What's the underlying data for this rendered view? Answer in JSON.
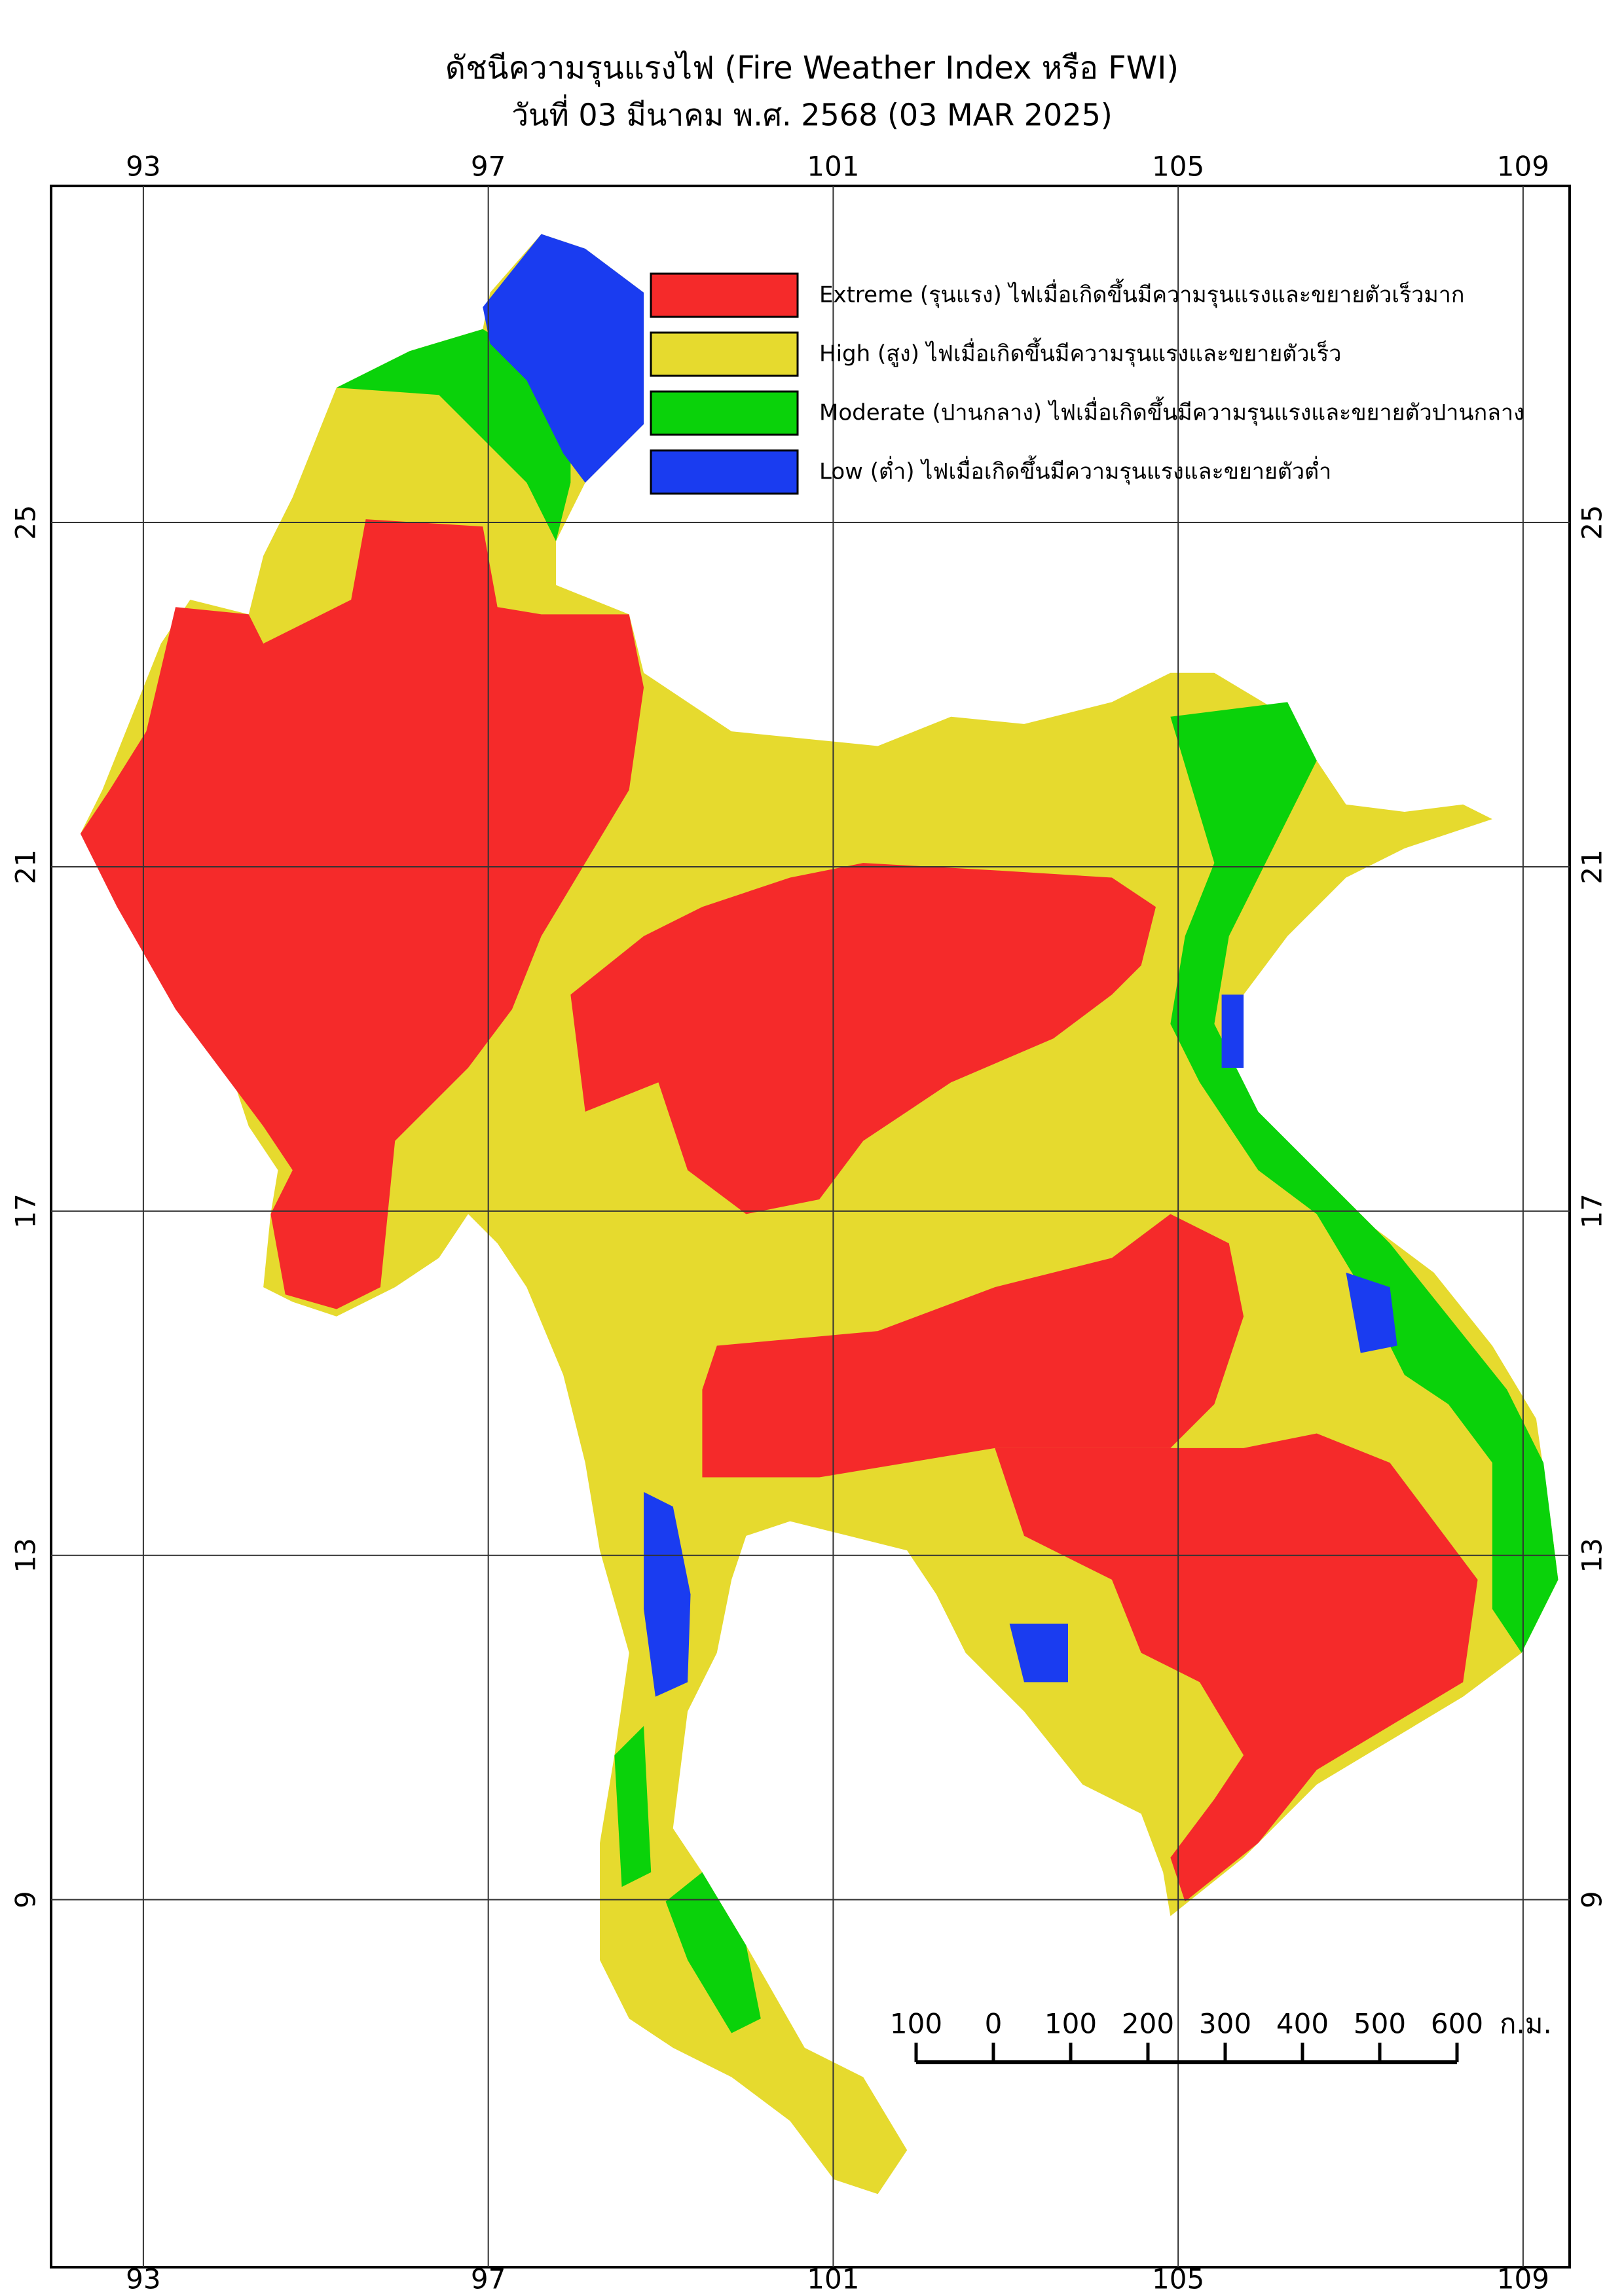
{
  "title": "ดัชนีความรุนแรงไฟ (Fire Weather Index หรือ FWI)",
  "subtitle": "วันที่ 03 มีนาคม พ.ศ. 2568 (03 MAR 2025)",
  "map": {
    "xlim": [
      91.93,
      109.54
    ],
    "ylim": [
      4.73,
      28.91
    ],
    "xticks": [
      93,
      97,
      101,
      105,
      109
    ],
    "yticks": [
      25,
      21,
      17,
      13,
      9
    ],
    "grid": true
  },
  "legend": [
    {
      "label": "Extreme (รุนแรง) ไฟเมื่อเกิดขึ้นมีความรุนแรงและขยายตัวเร็วมาก",
      "color": "#f52a2a"
    },
    {
      "label": "High (สูง) ไฟเมื่อเกิดขึ้นมีความรุนแรงและขยายตัวเร็ว",
      "color": "#e6da2e"
    },
    {
      "label": "Moderate (ปานกลาง) ไฟเมื่อเกิดขึ้นมีความรุนแรงและขยายตัวปานกลาง",
      "color": "#0ad20a"
    },
    {
      "label": "Low (ต่ำ) ไฟเมื่อเกิดขึ้นมีความรุนแรงและขยายตัวต่ำ",
      "color": "#1a3cf0"
    }
  ],
  "scale_bar": {
    "ticks": [
      {
        "value": -100,
        "label": "100"
      },
      0,
      100,
      200,
      300,
      400,
      500,
      600
    ],
    "unit": "ก.ม."
  }
}
